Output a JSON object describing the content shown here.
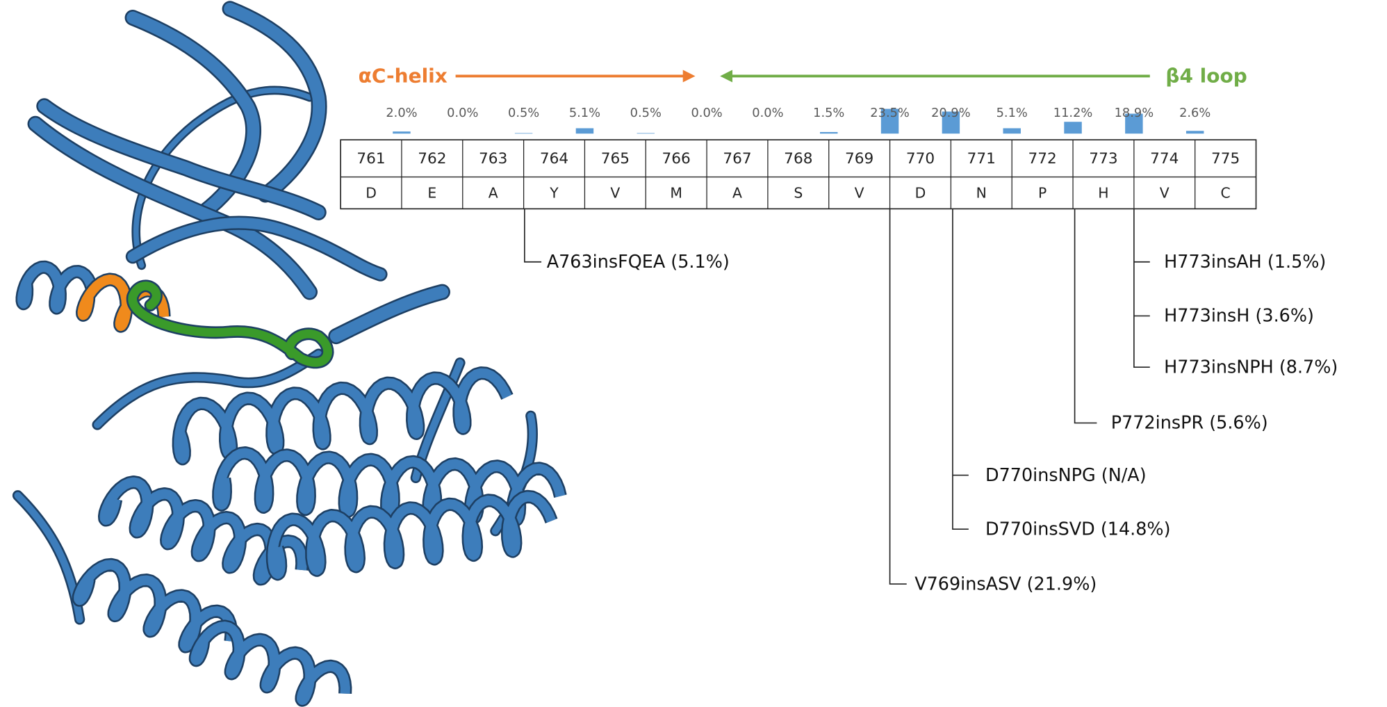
{
  "chart_data": {
    "type": "bar",
    "categories": [
      null,
      null,
      null,
      null,
      null,
      null,
      null,
      null,
      null,
      null,
      null,
      null,
      null,
      null
    ],
    "values": [
      2.0,
      0.0,
      0.5,
      5.1,
      0.5,
      0.0,
      0.0,
      1.5,
      23.5,
      20.9,
      5.1,
      11.2,
      18.9,
      2.6
    ],
    "value_labels": [
      "2.0%",
      "0.0%",
      "0.5%",
      "5.1%",
      "0.5%",
      "0.0%",
      "0.0%",
      "1.5%",
      "23.5%",
      "20.9%",
      "5.1%",
      "11.2%",
      "18.9%",
      "2.6%"
    ],
    "color": "#5b9bd5"
  },
  "regions": [
    {
      "label": "αC-helix",
      "color": "#ed7d31"
    },
    {
      "label": "β4 loop",
      "color": "#70ad47"
    }
  ],
  "residues": {
    "numbers": [
      761,
      762,
      763,
      764,
      765,
      766,
      767,
      768,
      769,
      770,
      771,
      772,
      773,
      774,
      775
    ],
    "letters": [
      "D",
      "E",
      "A",
      "Y",
      "V",
      "M",
      "A",
      "S",
      "V",
      "D",
      "N",
      "P",
      "H",
      "V",
      "C"
    ]
  },
  "insertions": [
    "A763insFQEA (5.1%)",
    "V769insASV (21.9%)",
    "D770insNPG (N/A)",
    "D770insSVD (14.8%)",
    "P772insPR (5.6%)",
    "H773insAH (1.5%)",
    "H773insH (3.6%)",
    "H773insNPH (8.7%)"
  ]
}
